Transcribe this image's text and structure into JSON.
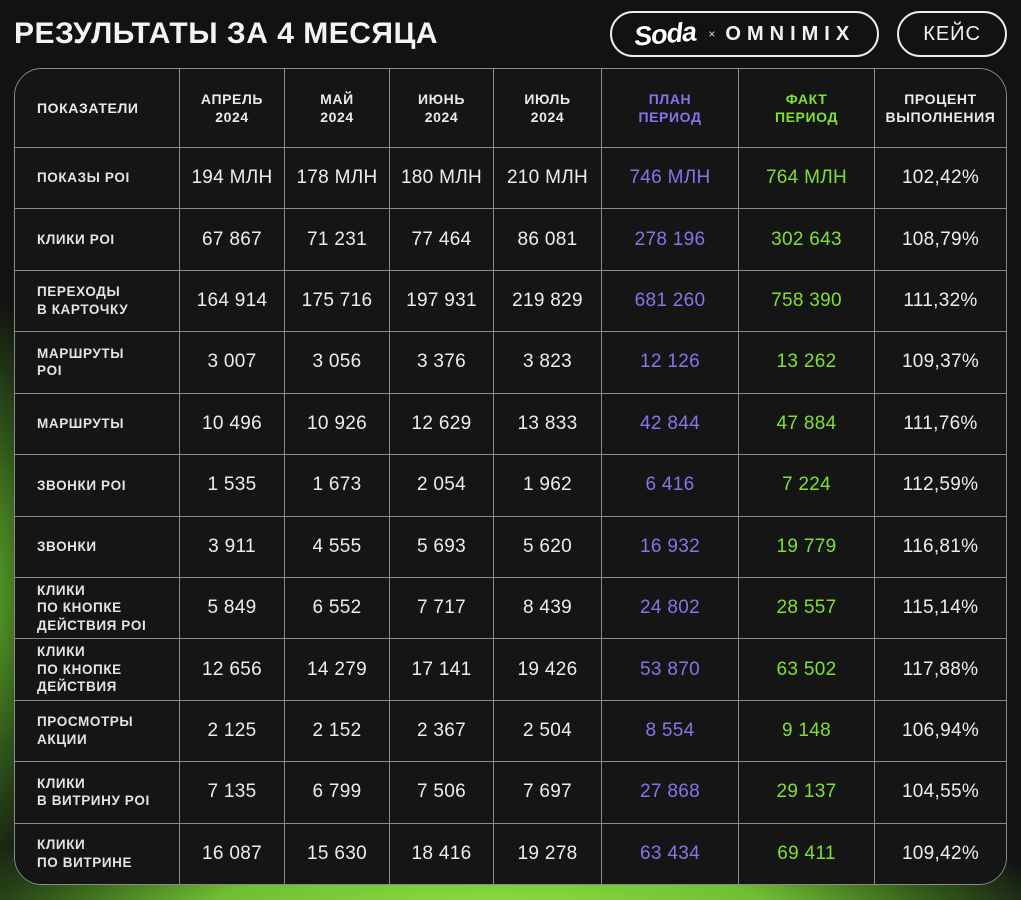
{
  "header": {
    "title": "РЕЗУЛЬТАТЫ ЗА 4 МЕСЯЦА",
    "logo": {
      "brand": "Soda",
      "separator": "×",
      "partner": "OMNIMIX"
    },
    "case_button": "КЕЙС"
  },
  "colors": {
    "plan_accent": "#8b72e9",
    "fact_accent": "#7fe033",
    "bottom_glow_green": "#8fe142",
    "table_background": "#151515",
    "grid_line": "#8a8a8a"
  },
  "table": {
    "columns": [
      {
        "label": "ПОКАЗАТЕЛИ",
        "tone": "white"
      },
      {
        "label": "АПРЕЛЬ\n2024",
        "tone": "white"
      },
      {
        "label": "МАЙ\n2024",
        "tone": "white"
      },
      {
        "label": "ИЮНЬ\n2024",
        "tone": "white"
      },
      {
        "label": "ИЮЛЬ\n2024",
        "tone": "white"
      },
      {
        "label": "ПЛАН\nПЕРИОД",
        "tone": "plan"
      },
      {
        "label": "ФАКТ\nПЕРИОД",
        "tone": "fact"
      },
      {
        "label": "ПРОЦЕНТ\nВЫПОЛНЕНИЯ",
        "tone": "white"
      }
    ],
    "rows": [
      {
        "label": "ПОКАЗЫ POI",
        "values": [
          "194 МЛН",
          "178 МЛН",
          "180 МЛН",
          "210 МЛН",
          "746 МЛН",
          "764 МЛН",
          "102,42%"
        ]
      },
      {
        "label": "КЛИКИ POI",
        "values": [
          "67 867",
          "71 231",
          "77 464",
          "86 081",
          "278 196",
          "302 643",
          "108,79%"
        ]
      },
      {
        "label": "ПЕРЕХОДЫ\nВ КАРТОЧКУ",
        "values": [
          "164 914",
          "175 716",
          "197 931",
          "219 829",
          "681 260",
          "758 390",
          "111,32%"
        ]
      },
      {
        "label": "МАРШРУТЫ\nPOI",
        "values": [
          "3 007",
          "3 056",
          "3 376",
          "3 823",
          "12 126",
          "13 262",
          "109,37%"
        ]
      },
      {
        "label": "МАРШРУТЫ",
        "values": [
          "10 496",
          "10 926",
          "12 629",
          "13 833",
          "42 844",
          "47 884",
          "111,76%"
        ]
      },
      {
        "label": "ЗВОНКИ POI",
        "values": [
          "1 535",
          "1 673",
          "2 054",
          "1 962",
          "6 416",
          "7 224",
          "112,59%"
        ]
      },
      {
        "label": "ЗВОНКИ",
        "values": [
          "3 911",
          "4 555",
          "5 693",
          "5 620",
          "16 932",
          "19 779",
          "116,81%"
        ]
      },
      {
        "label": "КЛИКИ\nПО КНОПКЕ\nДЕЙСТВИЯ POI",
        "values": [
          "5 849",
          "6 552",
          "7 717",
          "8 439",
          "24 802",
          "28 557",
          "115,14%"
        ]
      },
      {
        "label": "КЛИКИ\nПО КНОПКЕ\nДЕЙСТВИЯ",
        "values": [
          "12 656",
          "14 279",
          "17 141",
          "19 426",
          "53 870",
          "63 502",
          "117,88%"
        ]
      },
      {
        "label": "ПРОСМОТРЫ\nАКЦИИ",
        "values": [
          "2 125",
          "2 152",
          "2 367",
          "2 504",
          "8 554",
          "9 148",
          "106,94%"
        ]
      },
      {
        "label": "КЛИКИ\nВ ВИТРИНУ POI",
        "values": [
          "7 135",
          "6 799",
          "7 506",
          "7 697",
          "27 868",
          "29 137",
          "104,55%"
        ]
      },
      {
        "label": "КЛИКИ\nПО ВИТРИНЕ",
        "values": [
          "16 087",
          "15 630",
          "18 416",
          "19 278",
          "63 434",
          "69 411",
          "109,42%"
        ]
      }
    ]
  }
}
